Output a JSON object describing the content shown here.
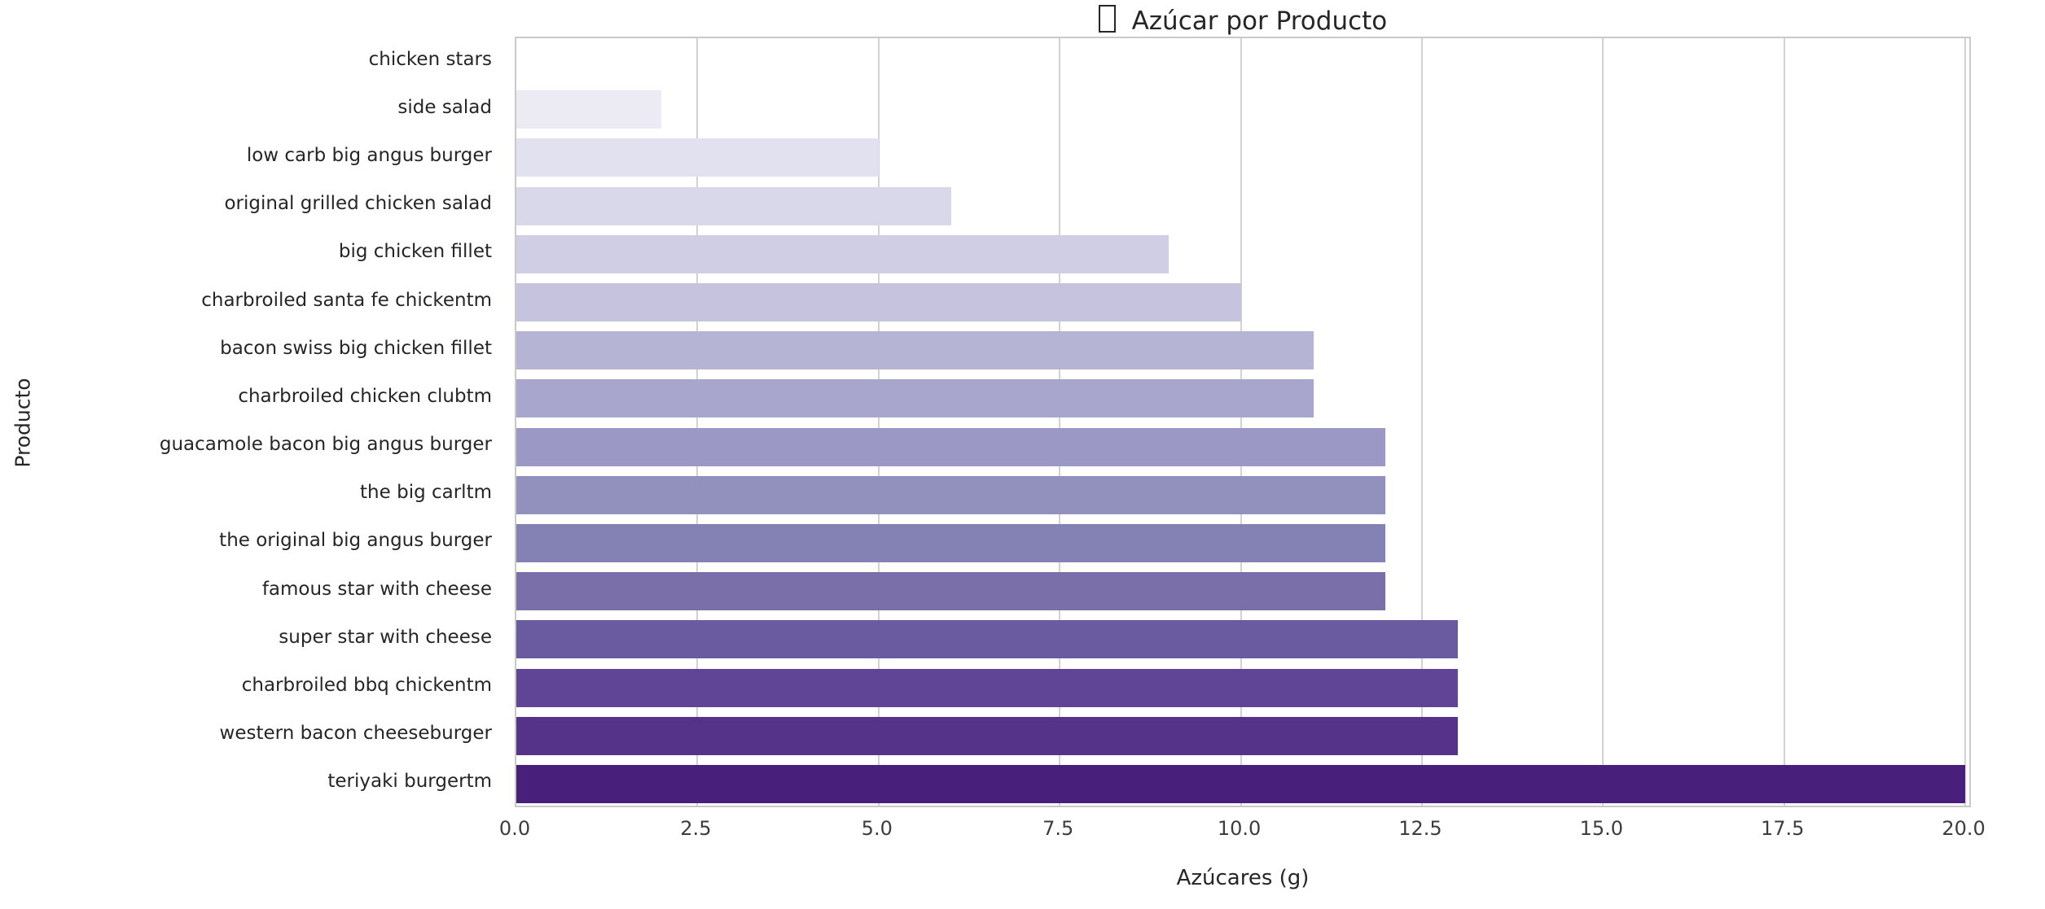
{
  "title": {
    "text": "Azúcar por Producto"
  },
  "chart_data": {
    "type": "bar",
    "orientation": "horizontal",
    "title": "Azúcar por Producto",
    "xlabel": "Azúcares (g)",
    "ylabel": "Producto",
    "xlim": [
      0,
      20.1
    ],
    "x_ticks": [
      0,
      2.5,
      5,
      7.5,
      10,
      12.5,
      15,
      17.5,
      20
    ],
    "x_tick_labels": [
      "0.0",
      "2.5",
      "5.0",
      "7.5",
      "10.0",
      "12.5",
      "15.0",
      "17.5",
      "20.0"
    ],
    "grid": "vertical",
    "legend": "none",
    "categories": [
      "chicken stars",
      "side salad",
      "low carb big angus burger",
      "original grilled chicken salad",
      "big chicken fillet",
      "charbroiled santa fe chickentm",
      "bacon swiss big chicken fillet",
      "charbroiled chicken clubtm",
      "guacamole bacon big angus burger",
      "the big carltm",
      "the original big angus burger",
      "famous star with cheese",
      "super star with cheese",
      "charbroiled bbq chickentm",
      "western bacon cheeseburger",
      "teriyaki burgertm"
    ],
    "values": [
      0,
      2,
      5,
      6,
      9,
      10,
      11,
      11,
      12,
      12,
      12,
      12,
      13,
      13,
      13,
      20
    ],
    "bar_colors": [
      "#f6f5fa",
      "#ecebf4",
      "#e2e1ef",
      "#d9d8ea",
      "#cfcee4",
      "#c5c3de",
      "#b6b4d5",
      "#a8a6cc",
      "#9b98c5",
      "#9290bd",
      "#8481b5",
      "#7a6fa9",
      "#6a5a9f",
      "#604596",
      "#553389",
      "#48207c"
    ],
    "colors": {
      "grid": "#d2d2d2",
      "spine": "#c9c9c9",
      "text": "#262626",
      "tick_text": "#3d3d3d",
      "background": "#ffffff"
    }
  }
}
